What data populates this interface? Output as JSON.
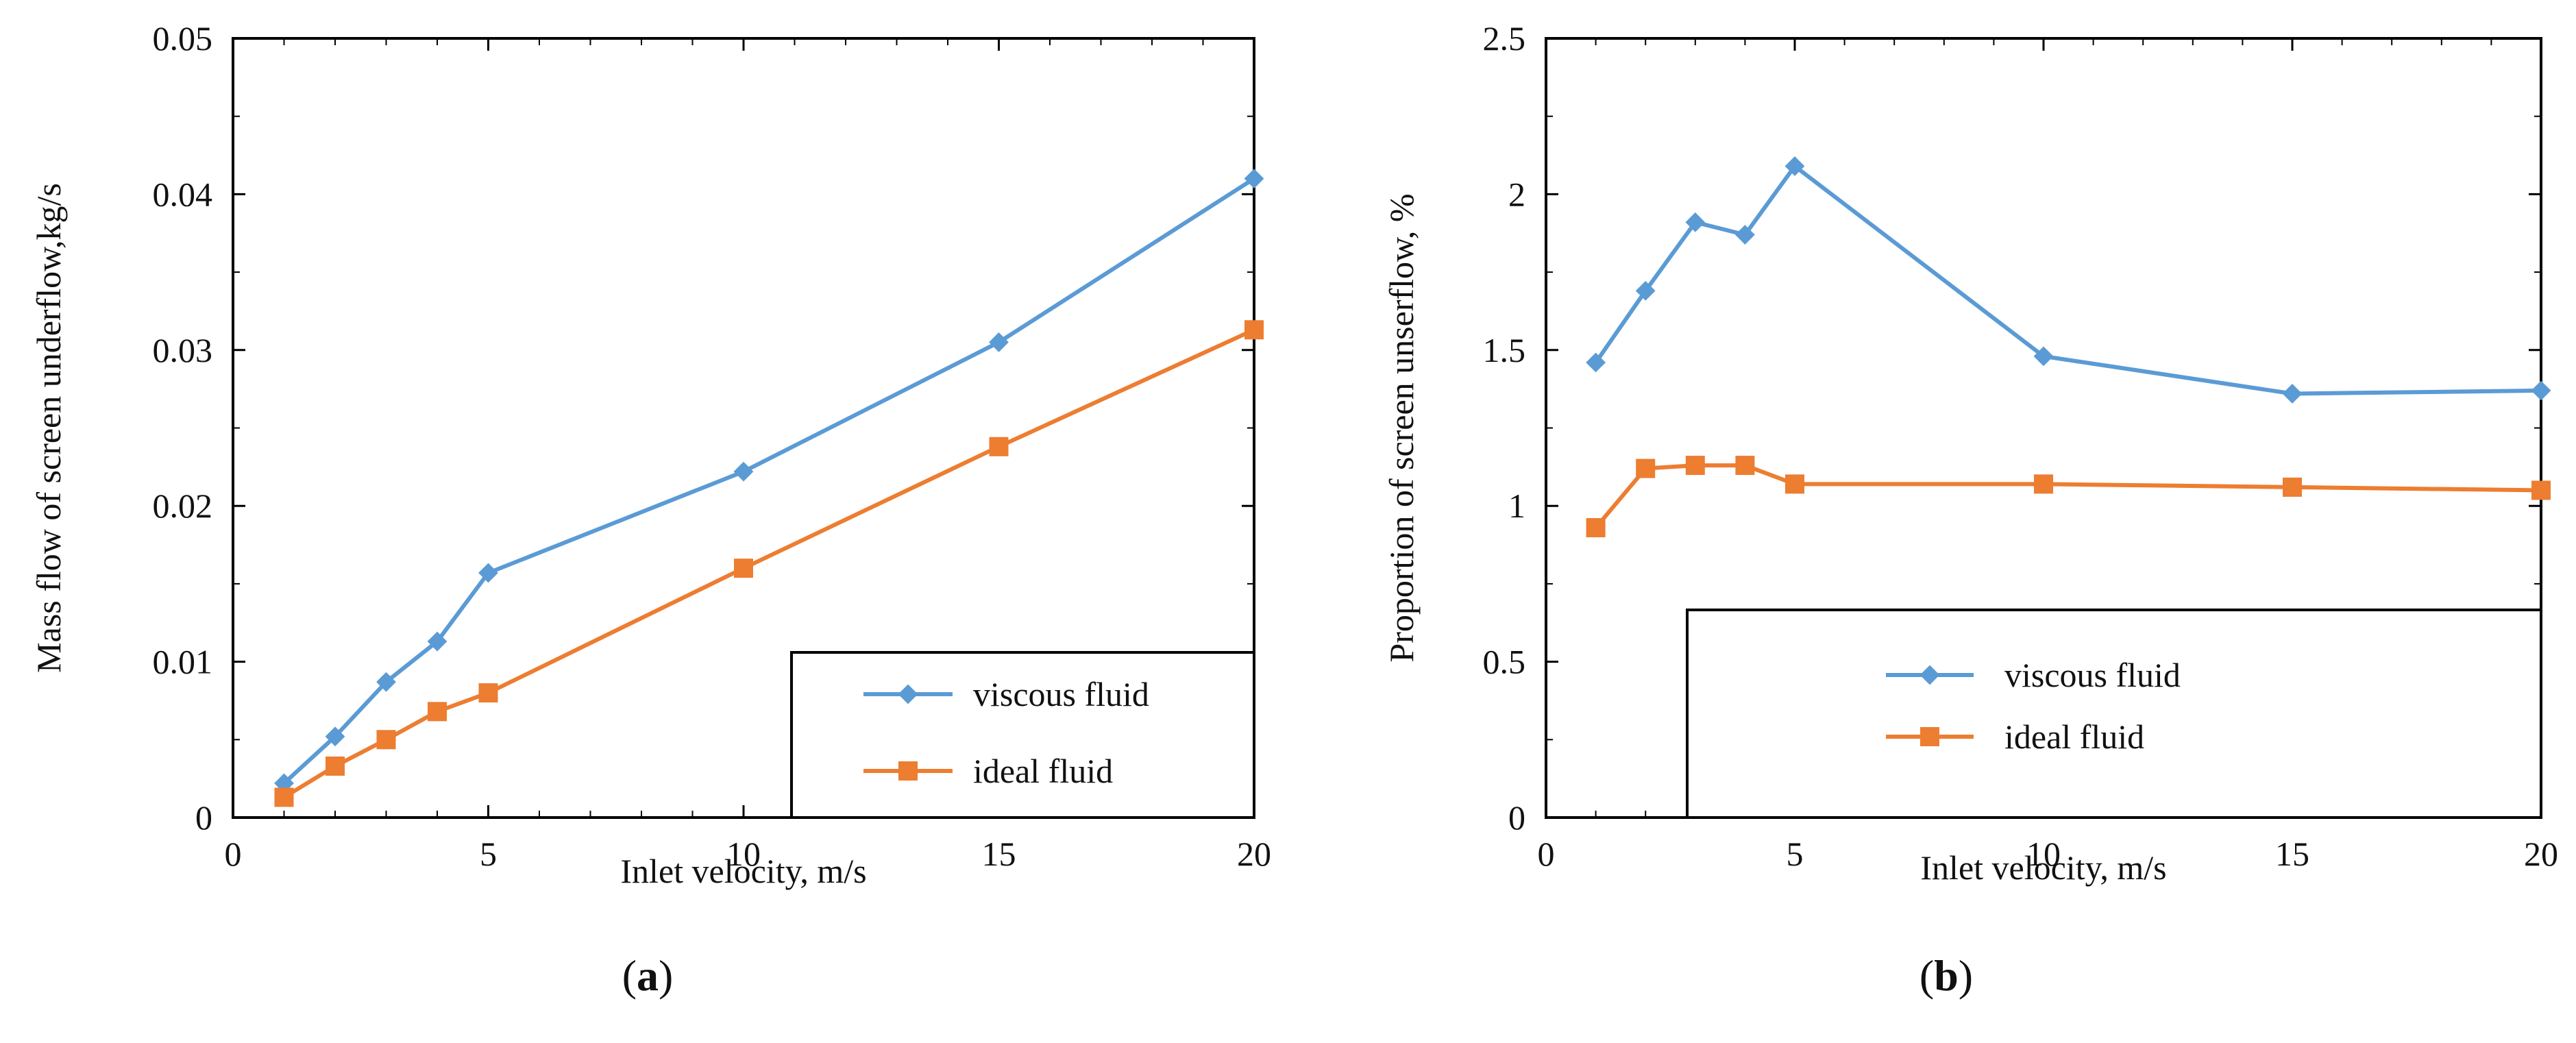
{
  "figure": {
    "colors": {
      "viscous": "#5b9bd5",
      "ideal": "#ed7d31",
      "axis": "#000000"
    }
  },
  "chart_data": [
    {
      "type": "line",
      "panel": "a",
      "panel_label": {
        "open": "(",
        "letter": "a",
        "close": ")"
      },
      "title": "",
      "xlabel": "Inlet velocity, m/s",
      "ylabel": "Mass flow of screen underflow,kg/s",
      "xlim": [
        0,
        20
      ],
      "ylim": [
        0,
        0.05
      ],
      "x_ticks": [
        0,
        5,
        10,
        15,
        20
      ],
      "y_ticks": [
        0,
        0.01,
        0.02,
        0.03,
        0.04,
        0.05
      ],
      "x_tick_labels": [
        "0",
        "5",
        "10",
        "15",
        "20"
      ],
      "y_tick_labels": [
        "0",
        "0.01",
        "0.02",
        "0.03",
        "0.04",
        "0.05"
      ],
      "legend_position": "bottom-right",
      "series": [
        {
          "name": "viscous fluid",
          "marker": "diamond",
          "x": [
            1,
            2,
            3,
            4,
            5,
            10,
            15,
            20
          ],
          "y": [
            0.0022,
            0.0052,
            0.0087,
            0.0113,
            0.0157,
            0.0222,
            0.0305,
            0.041
          ]
        },
        {
          "name": "ideal fluid",
          "marker": "square",
          "x": [
            1,
            2,
            3,
            4,
            5,
            10,
            15,
            20
          ],
          "y": [
            0.0013,
            0.0033,
            0.005,
            0.0068,
            0.008,
            0.016,
            0.0238,
            0.0313
          ]
        }
      ]
    },
    {
      "type": "line",
      "panel": "b",
      "panel_label": {
        "open": "(",
        "letter": "b",
        "close": ")"
      },
      "title": "",
      "xlabel": "Inlet velocity, m/s",
      "ylabel": "Proportion of screen unserflow, %",
      "xlim": [
        0,
        20
      ],
      "ylim": [
        0,
        2.5
      ],
      "x_ticks": [
        0,
        5,
        10,
        15,
        20
      ],
      "y_ticks": [
        0,
        0.5,
        1,
        1.5,
        2,
        2.5
      ],
      "x_tick_labels": [
        "0",
        "5",
        "10",
        "15",
        "20"
      ],
      "y_tick_labels": [
        "0",
        "0.5",
        "1",
        "1.5",
        "2",
        "2.5"
      ],
      "legend_position": "bottom-right",
      "series": [
        {
          "name": "viscous fluid",
          "marker": "diamond",
          "x": [
            1,
            2,
            3,
            4,
            5,
            10,
            15,
            20
          ],
          "y": [
            1.46,
            1.69,
            1.91,
            1.87,
            2.09,
            1.48,
            1.36,
            1.37
          ]
        },
        {
          "name": "ideal fluid",
          "marker": "square",
          "x": [
            1,
            2,
            3,
            4,
            5,
            10,
            15,
            20
          ],
          "y": [
            0.93,
            1.12,
            1.13,
            1.13,
            1.07,
            1.07,
            1.06,
            1.05
          ]
        }
      ]
    }
  ]
}
